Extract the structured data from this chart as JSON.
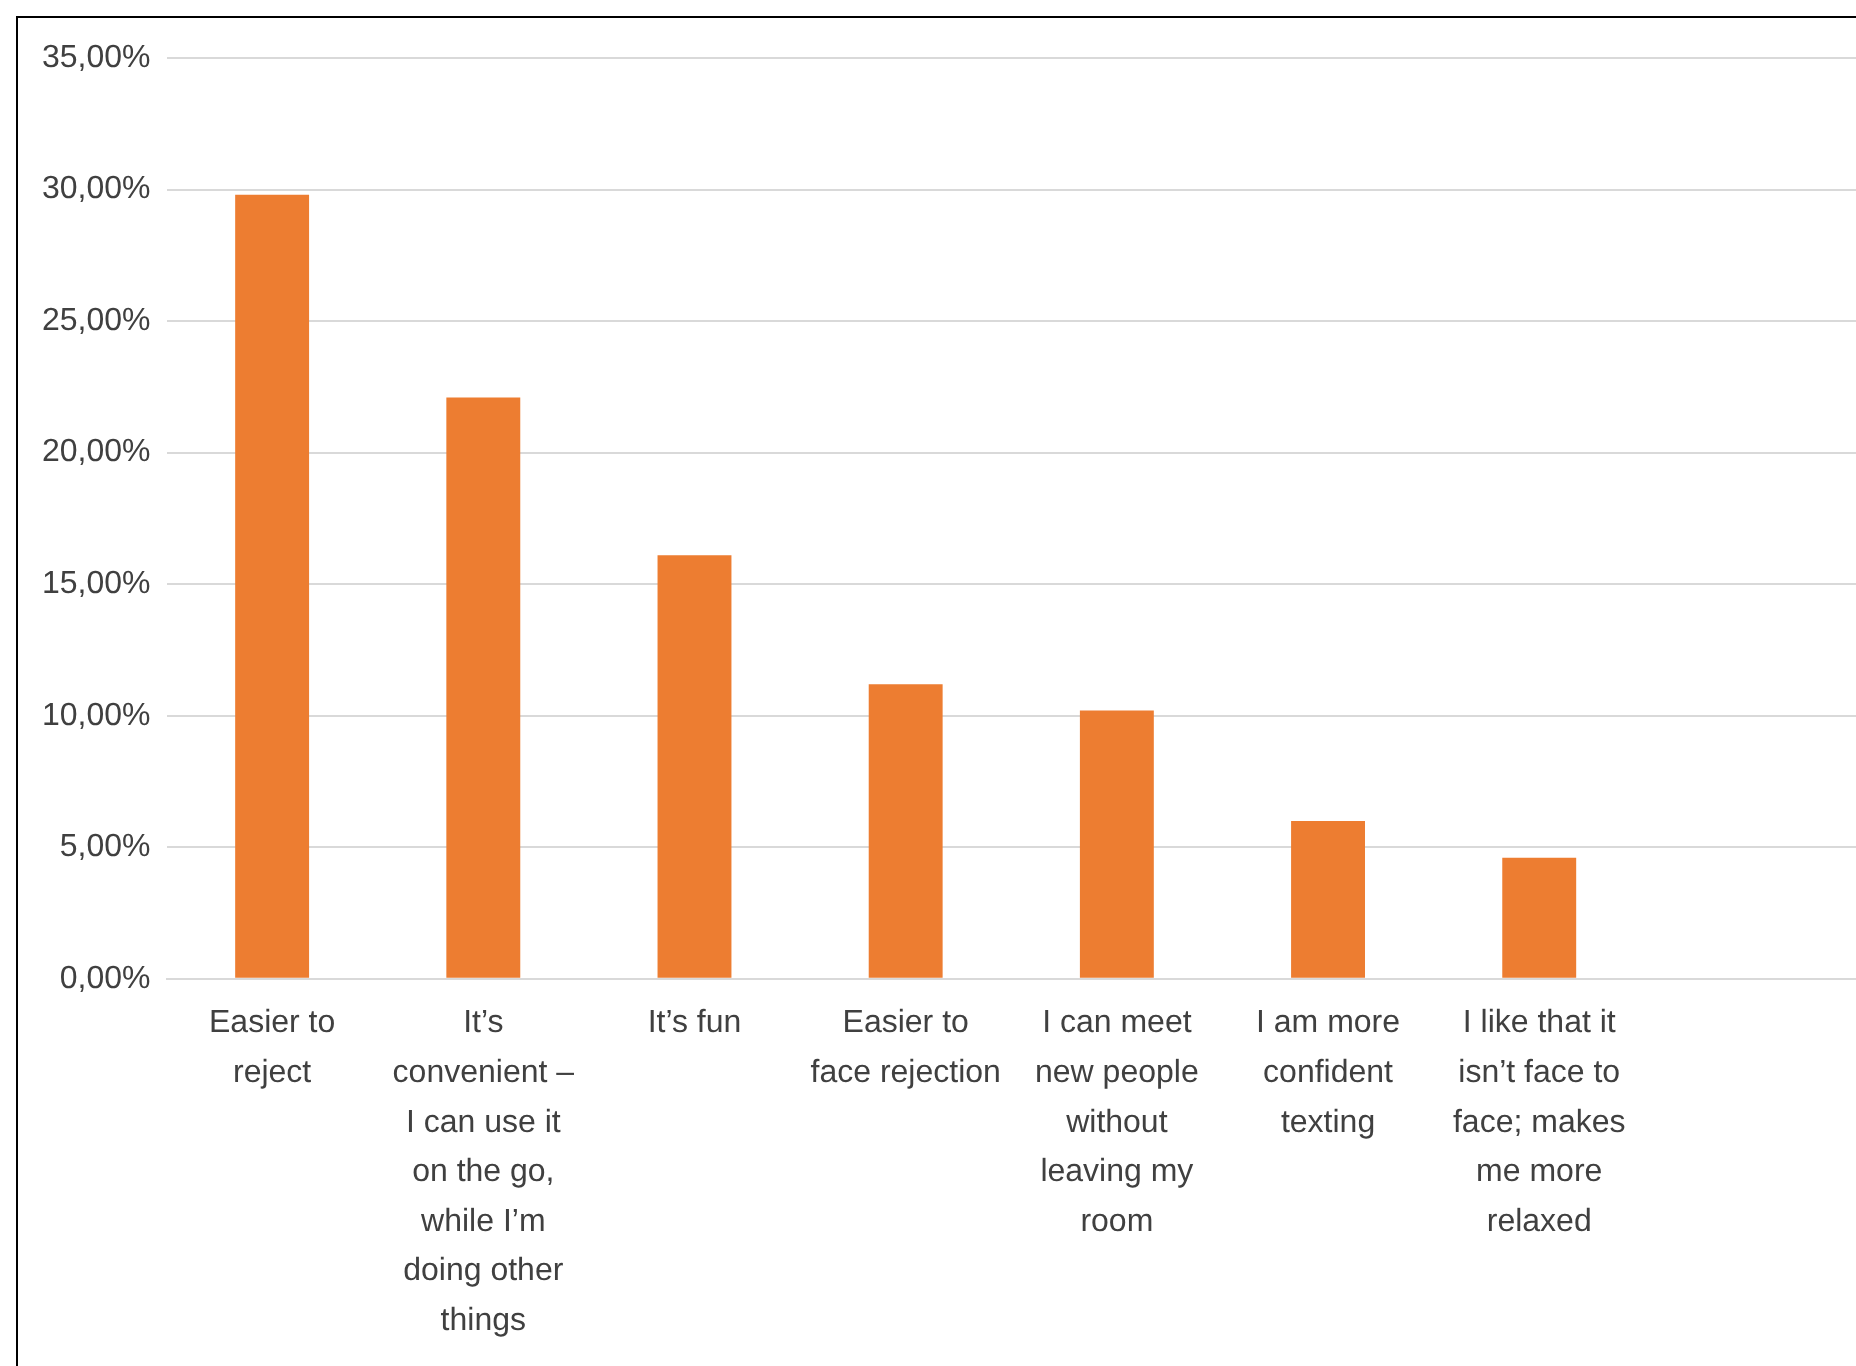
{
  "chart_data": {
    "type": "bar",
    "categories": [
      "Easier to reject",
      "It’s convenient – I can use it on the go, while I’m doing other things",
      "It’s fun",
      "Easier to face rejection",
      "I can meet new people without leaving my room",
      "I am more confident texting",
      "I like that it isn’t face to face; makes me more relaxed",
      null
    ],
    "values": [
      29.8,
      22.1,
      16.1,
      11.2,
      10.2,
      6.0,
      4.6,
      null
    ],
    "color": "#ed7d31",
    "ylim": [
      0,
      35
    ],
    "yticks": [
      {
        "value": 0,
        "label": "0,00%"
      },
      {
        "value": 5,
        "label": "5,00%"
      },
      {
        "value": 10,
        "label": "10,00%"
      },
      {
        "value": 15,
        "label": "15,00%"
      },
      {
        "value": 20,
        "label": "20,00%"
      },
      {
        "value": 25,
        "label": "25,00%"
      },
      {
        "value": 30,
        "label": "30,00%"
      },
      {
        "value": 35,
        "label": "35,00%"
      }
    ],
    "grid": "y"
  }
}
